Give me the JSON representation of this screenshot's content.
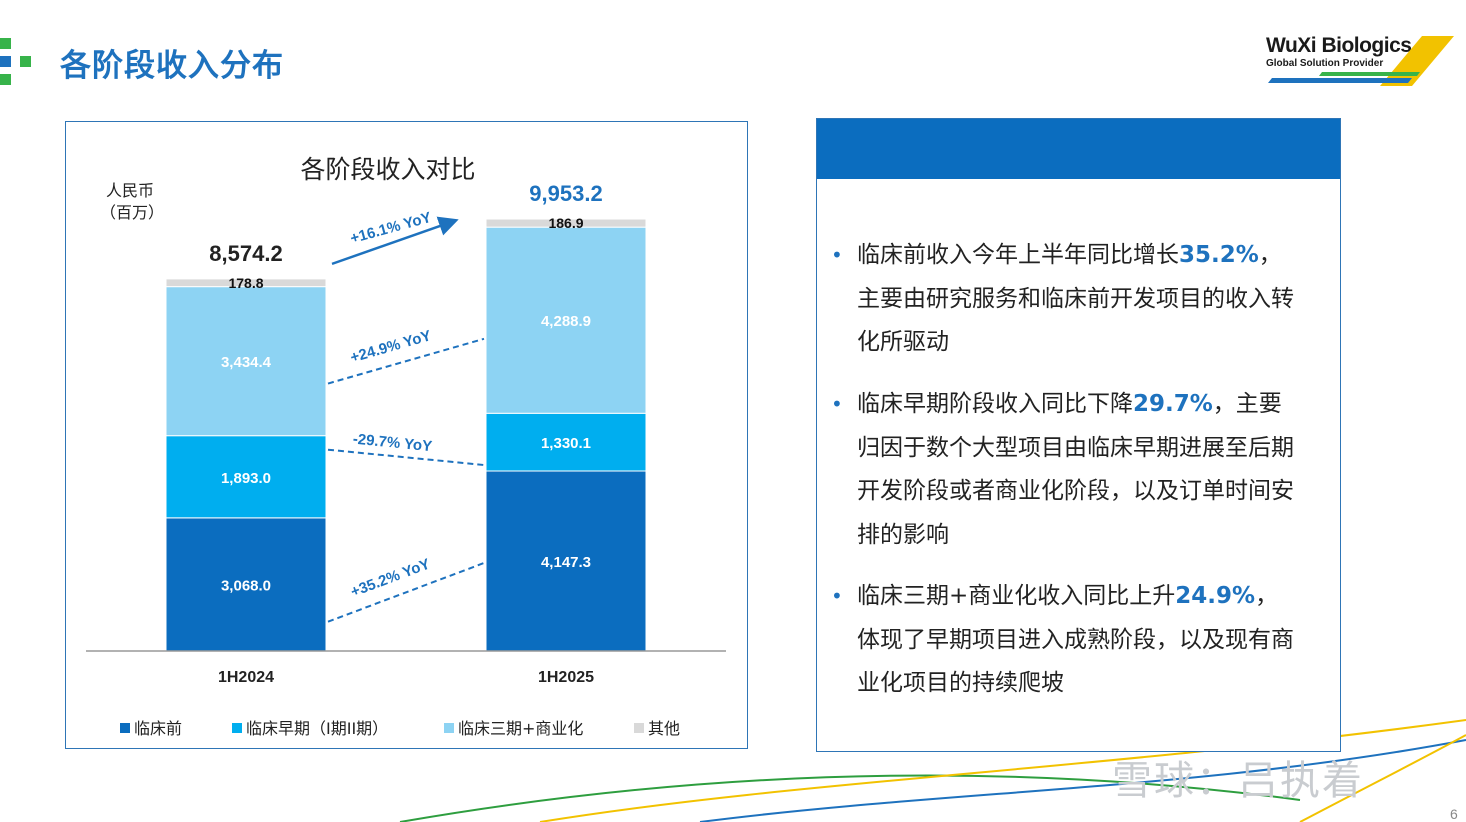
{
  "header": {
    "title": "各阶段收入分布",
    "brand_name": "WuXi Biologics",
    "brand_tagline": "Global Solution Provider"
  },
  "colors": {
    "preclinical": "#0B6DBF",
    "early_clinical": "#00AEEF",
    "late_commercial": "#8DD3F3",
    "others": "#D9D9D9",
    "accent": "#1E72BE"
  },
  "chart_data": {
    "type": "bar",
    "stacked": true,
    "title": "各阶段收入对比",
    "unit_label_line1": "人民币",
    "unit_label_line2": "（百万）",
    "categories": [
      "1H2024",
      "1H2025"
    ],
    "series": [
      {
        "name": "临床前",
        "values": [
          3068.0,
          4147.3
        ],
        "labels": [
          "3,068.0",
          "4,147.3"
        ],
        "color": "#0B6DBF"
      },
      {
        "name": "临床早期（I期II期）",
        "values": [
          1893.0,
          1330.1
        ],
        "labels": [
          "1,893.0",
          "1,330.1"
        ],
        "color": "#00AEEF"
      },
      {
        "name": "临床三期+商业化",
        "values": [
          3434.4,
          4288.9
        ],
        "labels": [
          "3,434.4",
          "4,288.9"
        ],
        "color": "#8DD3F3"
      },
      {
        "name": "其他",
        "values": [
          178.8,
          186.9
        ],
        "labels": [
          "178.8",
          "186.9"
        ],
        "color": "#D9D9D9"
      }
    ],
    "totals": [
      {
        "label": "8,574.2",
        "color": "#222222"
      },
      {
        "label": "9,953.2",
        "color": "#1E72BE"
      }
    ],
    "growth": [
      {
        "label": "+16.1% YoY",
        "kind": "total"
      },
      {
        "label": "+24.9% YoY",
        "kind": "late_commercial"
      },
      {
        "label": "-29.7% YoY",
        "kind": "early_clinical"
      },
      {
        "label": "+35.2% YoY",
        "kind": "preclinical"
      }
    ],
    "legend_position": "bottom",
    "grid": false
  },
  "panel": {
    "bullets": [
      {
        "parts": [
          {
            "t": "临床前收入今年上半年同比增长"
          },
          {
            "t": "35.2%",
            "hl": true
          },
          {
            "t": "，主要由研究服务和临床前开发项目的收入转化所驱动"
          }
        ]
      },
      {
        "parts": [
          {
            "t": "临床早期阶段收入同比下降"
          },
          {
            "t": "29.7%",
            "hl": true
          },
          {
            "t": "，主要归因于数个大型项目由临床早期进展至后期开发阶段或者商业化阶段，以及订单时间安排的影响"
          }
        ]
      },
      {
        "parts": [
          {
            "t": "临床三期+商业化收入同比上升"
          },
          {
            "t": "24.9%",
            "hl": true
          },
          {
            "t": "，体现了早期项目进入成熟阶段，以及现有商业化项目的持续爬坡"
          }
        ]
      }
    ]
  },
  "watermark": "雪球：吕执着",
  "page_number": "6"
}
